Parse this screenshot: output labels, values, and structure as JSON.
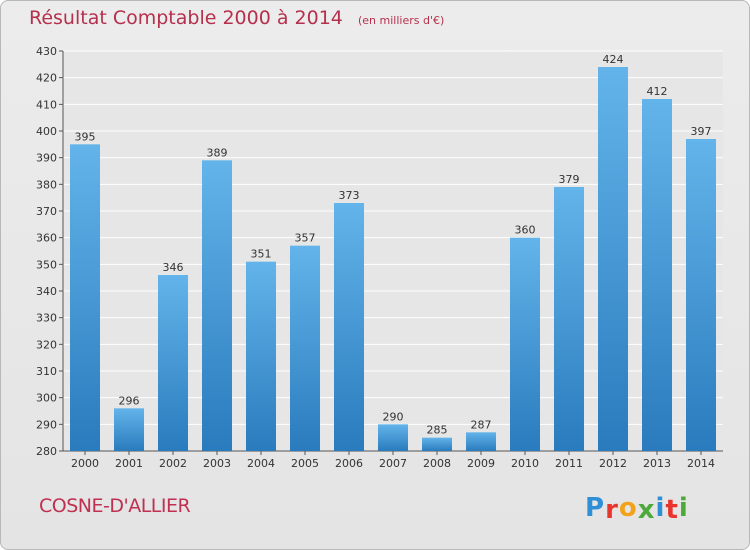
{
  "chart_data": {
    "type": "bar",
    "title": "Résultat Comptable 2000 à 2014",
    "subtitle": "(en milliers d'€)",
    "categories": [
      "2000",
      "2001",
      "2002",
      "2003",
      "2004",
      "2005",
      "2006",
      "2007",
      "2008",
      "2009",
      "2010",
      "2011",
      "2012",
      "2013",
      "2014"
    ],
    "values": [
      395,
      296,
      346,
      389,
      351,
      357,
      373,
      290,
      285,
      287,
      360,
      379,
      424,
      412,
      397
    ],
    "ylim": [
      280,
      430
    ],
    "yticks": [
      280,
      290,
      300,
      310,
      320,
      330,
      340,
      350,
      360,
      370,
      380,
      390,
      400,
      410,
      420,
      430
    ],
    "grid": true,
    "xlabel": "",
    "ylabel": "",
    "colors": {
      "bar_light": "#63b4ea",
      "bar_dark": "#2a7bbd",
      "title": "#b5304d"
    }
  },
  "footer": {
    "place": "COSNE-D'ALLIER",
    "logo_letters": [
      {
        "ch": "P",
        "color": "#2f8fd6"
      },
      {
        "ch": "r",
        "color": "#e8362d"
      },
      {
        "ch": "o",
        "color": "#f2a31b"
      },
      {
        "ch": "x",
        "color": "#4daa3a"
      },
      {
        "ch": "i",
        "color": "#2f8fd6"
      },
      {
        "ch": "t",
        "color": "#e8362d"
      },
      {
        "ch": "i",
        "color": "#4daa3a"
      }
    ]
  }
}
